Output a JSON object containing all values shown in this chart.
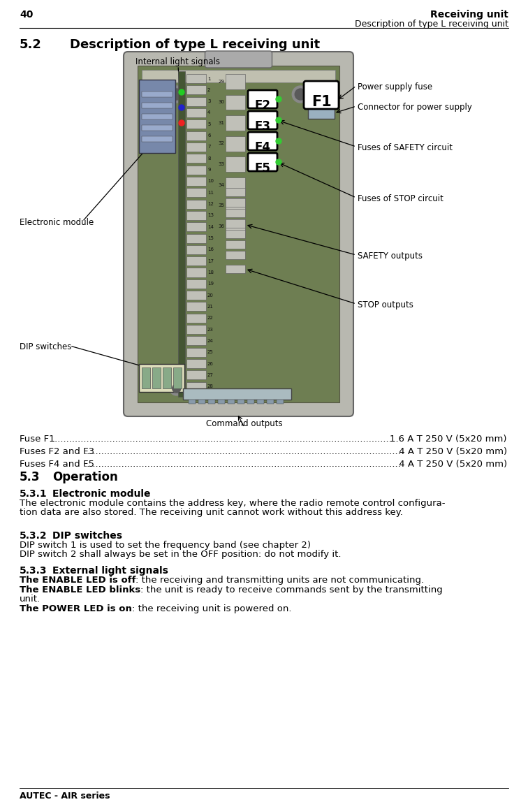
{
  "page_number": "40",
  "header_right_line1": "Receiving unit",
  "header_right_line2": "Description of type L receiving unit",
  "section_title": "5.2",
  "section_title2": "Description of type L receiving unit",
  "footer": "AUTEC - AIR series",
  "fuse_lines": [
    {
      "label": "Fuse F1 ",
      "value": "1.6 A T 250 V (5x20 mm)"
    },
    {
      "label": "Fuses F2 and F3 ",
      "value": " 4 A T 250 V (5x20 mm)"
    },
    {
      "label": "Fuses F4 and F5 ",
      "value": " 4 A T 250 V (5x20 mm)"
    }
  ],
  "section_53_title": "5.3",
  "section_53_title2": "Operation",
  "section_531_title": "5.3.1",
  "section_531_title2": "Electronic module",
  "section_531_body1": "The electronic module contains the address key, where the radio remote control configura-",
  "section_531_body2": "tion data are also stored. The receiving unit cannot work without this address key.",
  "section_532_title": "5.3.2",
  "section_532_title2": "DIP switches",
  "section_532_body1": "DIP switch 1 is used to set the frequency band (see chapter 2)",
  "section_532_body2": "DIP switch 2 shall always be set in the OFF position: do not modify it.",
  "section_533_title": "5.3.3",
  "section_533_title2": "External light signals",
  "enable_off_bold": "The ENABLE LED is off",
  "enable_off_normal": ": the receiving and transmitting units are not communicating.",
  "enable_blink_bold": "The ENABLE LED blinks",
  "enable_blink_normal": ": the unit is ready to receive commands sent by the transmitting",
  "enable_blink_cont": "unit.",
  "power_on_bold": "The POWER LED is on",
  "power_on_normal": ": the receiving unit is powered on.",
  "lbl_internal": "Internal light signals",
  "lbl_power_fuse": "Power supply fuse",
  "lbl_connector": "Connector for power supply",
  "lbl_fuses_safety": "Fuses of SAFETY circuit",
  "lbl_fuses_stop": "Fuses of STOP circuit",
  "lbl_safety_out": "SAFETY outputs",
  "lbl_stop_out": "STOP outputs",
  "lbl_electronic": "Electronic module",
  "lbl_dip": "DIP switches",
  "lbl_command": "Command outputs",
  "bg_color": "#ffffff"
}
